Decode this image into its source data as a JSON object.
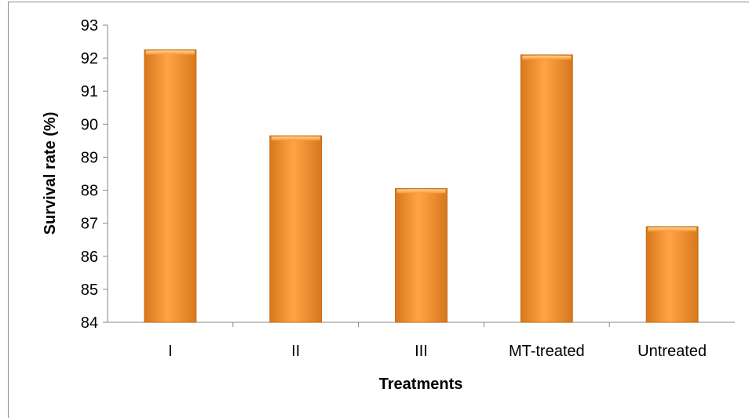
{
  "chart_data": {
    "type": "bar",
    "title": "",
    "xlabel": "Treatments",
    "ylabel": "Survival rate (%)",
    "categories": [
      "I",
      "II",
      "III",
      "MT-treated",
      "Untreated"
    ],
    "values": [
      92.25,
      89.65,
      88.05,
      92.1,
      86.9
    ],
    "ylim": [
      84,
      93
    ],
    "yticks": [
      "84",
      "85",
      "86",
      "87",
      "88",
      "89",
      "90",
      "91",
      "92",
      "93"
    ],
    "grid": false,
    "legend": "none",
    "colors": {
      "bar_light": "#ffb050",
      "bar_mid": "#f7922e",
      "bar_dark": "#c86a12"
    }
  }
}
